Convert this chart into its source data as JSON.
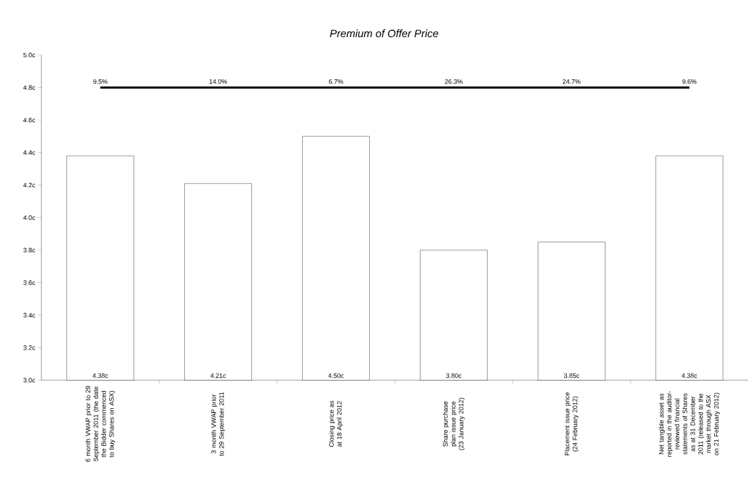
{
  "chart_data": {
    "type": "bar",
    "title": "Premium of Offer Price",
    "categories": [
      "6 month VWAP prior to 29 September 2011 (the date the Bidder commenced to buy Shares on ASX)",
      "3 month VWAP prior to 29 September 2011",
      "Closing price as at 18 April 2012",
      "Share purchase plan issue price (23 January 2012)",
      "Placement issue price (24 February 2012)",
      "Net tangible asset as reported in the auditor-reviewed financial statements of Shares as at 31 December 2011 (released to the market through ASX on 21 February 2012)"
    ],
    "series": [
      {
        "color": "#ffffff",
        "values": [
          4.38,
          4.21,
          4.5,
          3.8,
          3.85,
          4.38
        ],
        "value_labels": [
          "4.38c",
          "4.21c",
          "4.50c",
          "3.80c",
          "3.85c",
          "4.38c"
        ]
      },
      {
        "type": "line",
        "color": "#000000",
        "values": [
          4.8,
          4.8,
          4.8,
          4.8,
          4.8,
          4.8
        ]
      }
    ],
    "annotations": [
      {
        "text": "9.5%",
        "x": "6 month VWAP prior to 29 September 2011 (the date the Bidder commenced to buy Shares on ASX)",
        "y": 4.8
      },
      {
        "text": "14.0%",
        "x": "3 month VWAP prior to 29 September 2011",
        "y": 4.8
      },
      {
        "text": "6.7%",
        "x": "Closing price as at 18 April 2012",
        "y": 4.8
      },
      {
        "text": "26.3%",
        "x": "Share purchase plan issue price (23 January 2012)",
        "y": 4.8
      },
      {
        "text": "24.7%",
        "x": "Placement issue price (24 February 2012)",
        "y": 4.8
      },
      {
        "text": "9.6%",
        "x": "Net tangible asset as reported in the auditor-reviewed financial statements of Shares as at 31 December 2011 (released to the market through ASX on 21 February 2012)",
        "y": 4.8
      }
    ],
    "ylim": [
      3.0,
      5.0
    ],
    "yticks": [
      {
        "value": 3.0,
        "label": "3.0c"
      },
      {
        "value": 3.2,
        "label": "3.2c"
      },
      {
        "value": 3.4,
        "label": "3.4c"
      },
      {
        "value": 3.6,
        "label": "3.6c"
      },
      {
        "value": 3.8,
        "label": "3.8c"
      },
      {
        "value": 4.0,
        "label": "4.0c"
      },
      {
        "value": 4.2,
        "label": "4.2c"
      },
      {
        "value": 4.4,
        "label": "4.4c"
      },
      {
        "value": 4.6,
        "label": "4.6c"
      },
      {
        "value": 4.8,
        "label": "4.8c"
      },
      {
        "value": 5.0,
        "label": "5.0c"
      }
    ],
    "grid": false
  }
}
